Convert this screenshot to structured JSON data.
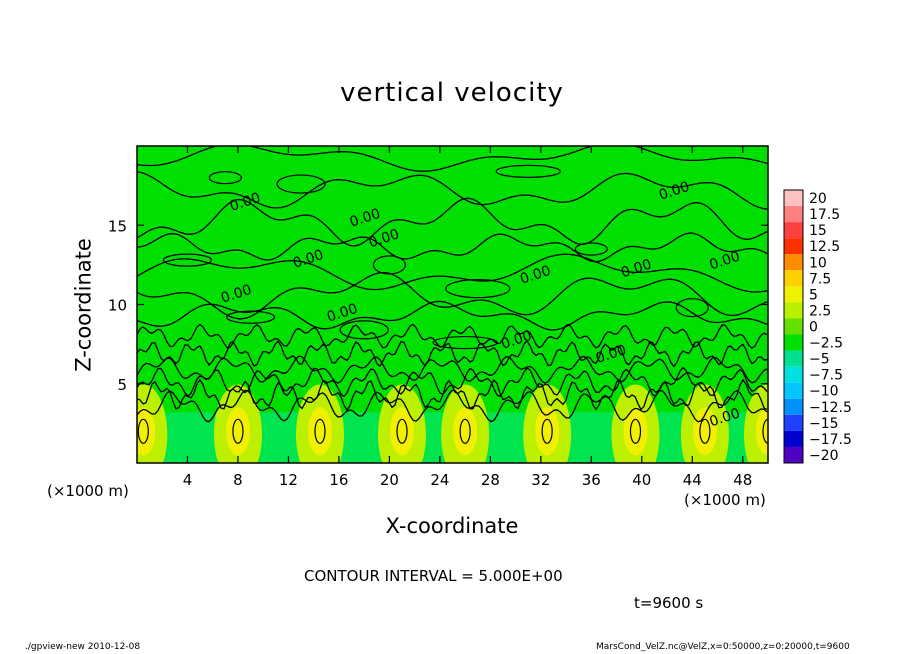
{
  "chart_data": {
    "type": "heatmap",
    "title": "vertical velocity",
    "xlabel": "X-coordinate",
    "ylabel": "Z-coordinate",
    "x_unit": "(×1000 m)",
    "y_unit": "(×1000 m)",
    "xlim": [
      0,
      50
    ],
    "ylim": [
      0,
      20
    ],
    "x_ticks": [
      "4",
      "8",
      "12",
      "16",
      "20",
      "24",
      "28",
      "32",
      "36",
      "40",
      "44",
      "48"
    ],
    "y_ticks": [
      "5",
      "10",
      "15"
    ],
    "colorbar": {
      "levels": [
        "20",
        "17.5",
        "15",
        "12.5",
        "10",
        "7.5",
        "5",
        "2.5",
        "0",
        "−2.5",
        "−5",
        "−7.5",
        "−10",
        "−12.5",
        "−15",
        "−17.5",
        "−20"
      ],
      "colors": [
        "#ffc0c0",
        "#ff8080",
        "#ff4040",
        "#ff3000",
        "#ff8c00",
        "#ffd000",
        "#f0f000",
        "#b8f000",
        "#66e000",
        "#00e000",
        "#00e090",
        "#00e0e0",
        "#00c8ff",
        "#0090ff",
        "#2040ff",
        "#0000d0",
        "#5000c0"
      ]
    },
    "contour_label": "0.00",
    "contour_interval_text": "CONTOUR INTERVAL = 5.000E+00",
    "time_text": "t=9600 s",
    "updraft_centers_x": [
      0.5,
      8,
      14.5,
      21,
      26,
      32.5,
      39.5,
      45,
      50
    ]
  },
  "footer": {
    "left": "./gpview-new  2010-12-08",
    "right": "MarsCond_VelZ.nc@VelZ,x=0:50000,z=0:20000,t=9600"
  },
  "colors": {
    "background": "#00e000",
    "updraft": "#bdf000",
    "core": "#f0f000",
    "downdraft": "#00e890"
  }
}
